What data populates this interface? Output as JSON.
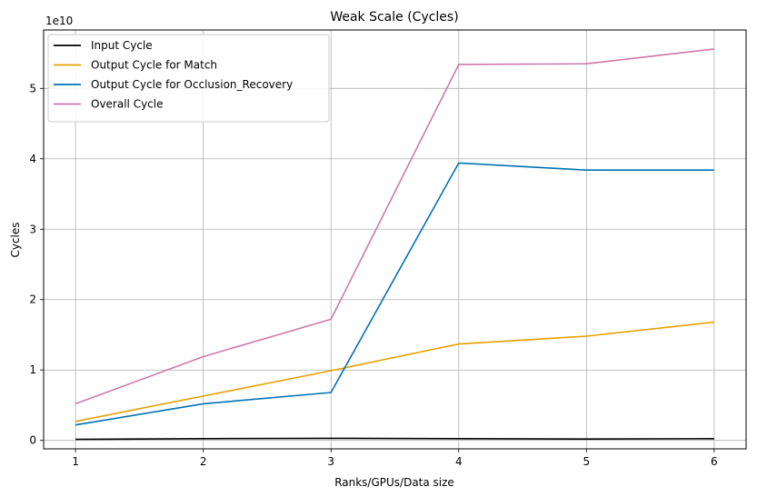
{
  "chart_data": {
    "type": "line",
    "title": "Weak Scale (Cycles)",
    "xlabel": "Ranks/GPUs/Data size",
    "ylabel": "Cycles",
    "offset_label": "1e10",
    "x": [
      1,
      2,
      3,
      4,
      5,
      6
    ],
    "x_ticks": [
      1,
      2,
      3,
      4,
      5,
      6
    ],
    "y_ticks": [
      0,
      1,
      2,
      3,
      4,
      5
    ],
    "y_tick_scale": 10000000000,
    "xlim": [
      0.75,
      6.25
    ],
    "ylim": [
      -1200000000,
      58300000000
    ],
    "grid": true,
    "legend_position": "top-left",
    "series": [
      {
        "name": "Input Cycle",
        "color": "#000000",
        "values": [
          150000000,
          250000000,
          300000000,
          250000000,
          200000000,
          250000000
        ]
      },
      {
        "name": "Output Cycle for Match",
        "color": "#e69f00",
        "values": [
          2700000000,
          6300000000,
          9900000000,
          13700000000,
          14800000000,
          16800000000
        ]
      },
      {
        "name": "Output Cycle for Occlusion_Recovery",
        "color": "#0072b2",
        "values": [
          2200000000,
          5200000000,
          6800000000,
          39400000000,
          38400000000,
          38400000000
        ]
      },
      {
        "name": "Overall Cycle",
        "color": "#cc79a7",
        "values": [
          5200000000,
          11900000000,
          17200000000,
          53400000000,
          53500000000,
          55600000000
        ]
      }
    ]
  }
}
